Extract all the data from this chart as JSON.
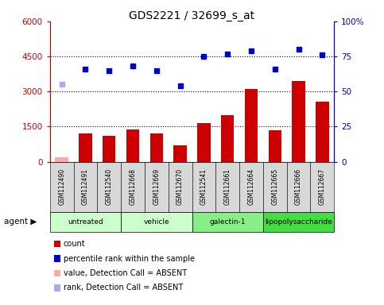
{
  "title": "GDS2221 / 32699_s_at",
  "samples": [
    "GSM112490",
    "GSM112491",
    "GSM112540",
    "GSM112668",
    "GSM112669",
    "GSM112670",
    "GSM112541",
    "GSM112661",
    "GSM112664",
    "GSM112665",
    "GSM112666",
    "GSM112667"
  ],
  "counts": [
    200,
    1200,
    1100,
    1380,
    1200,
    700,
    1650,
    2000,
    3100,
    1350,
    3450,
    2550
  ],
  "absent_indices": [
    0
  ],
  "percentile_ranks": [
    55,
    66,
    65,
    68,
    65,
    54,
    75,
    77,
    79,
    66,
    80,
    76
  ],
  "absent_rank_indices": [
    0
  ],
  "groups": [
    {
      "label": "untreated",
      "start": 0,
      "end": 3,
      "color": "#ccffcc"
    },
    {
      "label": "vehicle",
      "start": 3,
      "end": 6,
      "color": "#ccffcc"
    },
    {
      "label": "galectin-1",
      "start": 6,
      "end": 9,
      "color": "#88ee88"
    },
    {
      "label": "lipopolysaccharide",
      "start": 9,
      "end": 12,
      "color": "#44dd44"
    }
  ],
  "ylim_left": [
    0,
    6000
  ],
  "ylim_right": [
    0,
    100
  ],
  "yticks_left": [
    0,
    1500,
    3000,
    4500,
    6000
  ],
  "ytick_labels_left": [
    "0",
    "1500",
    "3000",
    "4500",
    "6000"
  ],
  "yticks_right": [
    0,
    25,
    50,
    75,
    100
  ],
  "ytick_labels_right": [
    "0",
    "25",
    "50",
    "75",
    "100%"
  ],
  "bar_color": "#cc0000",
  "absent_bar_color": "#ffaaaa",
  "dot_color": "#0000cc",
  "absent_dot_color": "#aaaaee",
  "legend_items": [
    {
      "label": "count",
      "color": "#cc0000"
    },
    {
      "label": "percentile rank within the sample",
      "color": "#0000cc"
    },
    {
      "label": "value, Detection Call = ABSENT",
      "color": "#ffaaaa"
    },
    {
      "label": "rank, Detection Call = ABSENT",
      "color": "#aaaaee"
    }
  ],
  "background_color": "#ffffff",
  "left_axis_color": "#cc0000",
  "right_axis_color": "#0000cc"
}
